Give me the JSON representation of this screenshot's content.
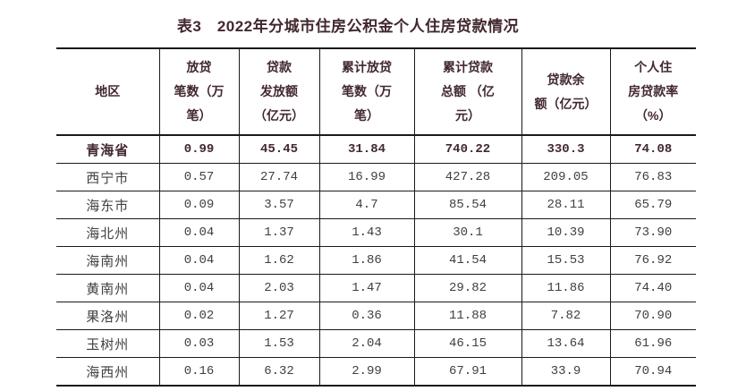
{
  "page": {
    "title": "表3　2022年分城市住房公积金个人住房贷款情况",
    "background": "#ffffff"
  },
  "colors": {
    "emphasis_text": "#41282e",
    "body_text": "#404040",
    "border": "#1a1a1a"
  },
  "table": {
    "columns": [
      "地区",
      "放贷\n笔数（万\n笔）",
      "贷款\n发放额\n（亿元）",
      "累计放贷\n笔数（万\n笔）",
      "累计贷款\n总额 （亿\n元）",
      "贷款余\n额（亿元）",
      "个人住\n房贷款率\n（%）"
    ],
    "rows": [
      {
        "region": "青海省",
        "values": [
          "0.99",
          "45.45",
          "31.84",
          "740.22",
          "330.3",
          "74.08"
        ],
        "emphasis": true
      },
      {
        "region": "西宁市",
        "values": [
          "0.57",
          "27.74",
          "16.99",
          "427.28",
          "209.05",
          "76.83"
        ],
        "emphasis": false
      },
      {
        "region": "海东市",
        "values": [
          "0.09",
          "3.57",
          "4.7",
          "85.54",
          "28.11",
          "65.79"
        ],
        "emphasis": false
      },
      {
        "region": "海北州",
        "values": [
          "0.04",
          "1.37",
          "1.43",
          "30.1",
          "10.39",
          "73.90"
        ],
        "emphasis": false
      },
      {
        "region": "海南州",
        "values": [
          "0.04",
          "1.62",
          "1.86",
          "41.54",
          "15.53",
          "76.92"
        ],
        "emphasis": false
      },
      {
        "region": "黄南州",
        "values": [
          "0.04",
          "2.03",
          "1.47",
          "29.82",
          "11.86",
          "74.40"
        ],
        "emphasis": false
      },
      {
        "region": "果洛州",
        "values": [
          "0.02",
          "1.27",
          "0.36",
          "11.88",
          "7.82",
          "70.90"
        ],
        "emphasis": false
      },
      {
        "region": "玉树州",
        "values": [
          "0.03",
          "1.53",
          "2.04",
          "46.15",
          "13.64",
          "61.96"
        ],
        "emphasis": false
      },
      {
        "region": "海西州",
        "values": [
          "0.16",
          "6.32",
          "2.99",
          "67.91",
          "33.9",
          "70.94"
        ],
        "emphasis": false
      }
    ]
  }
}
